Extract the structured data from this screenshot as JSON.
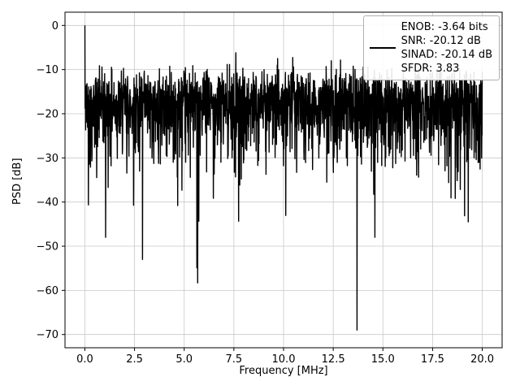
{
  "chart_data": {
    "type": "line",
    "title": "",
    "xlabel": "Frequency [MHz]",
    "ylabel": "PSD [dB]",
    "xlim": [
      -1.0,
      21.0
    ],
    "ylim": [
      -73,
      3
    ],
    "grid": true,
    "line_color": "#000000",
    "grid_color": "#c9c9c9",
    "spine_color": "#000000",
    "xticks": [
      0.0,
      2.5,
      5.0,
      7.5,
      10.0,
      12.5,
      15.0,
      17.5,
      20.0
    ],
    "xtick_labels": [
      "0.0",
      "2.5",
      "5.0",
      "7.5",
      "10.0",
      "12.5",
      "15.0",
      "17.5",
      "20.0"
    ],
    "yticks": [
      0,
      -10,
      -20,
      -30,
      -40,
      -50,
      -60,
      -70
    ],
    "ytick_labels": [
      "0",
      "−10",
      "−20",
      "−30",
      "−40",
      "−50",
      "−60",
      "−70"
    ],
    "series": [
      {
        "name": "PSD",
        "points_n": 2048,
        "x_range": [
          0,
          20
        ],
        "distribution": "exponential_db",
        "noise_floor_db": -16.5,
        "seed": 42,
        "peak": {
          "x": 0.0,
          "y": 0.0
        },
        "deep_null": {
          "x": 13.7,
          "y": -69.0
        },
        "extra_nulls": [
          {
            "x": 1.05,
            "y": -48.0
          },
          {
            "x": 2.9,
            "y": -53.0
          },
          {
            "x": 14.6,
            "y": -48.0
          },
          {
            "x": 19.3,
            "y": -44.5
          }
        ],
        "extra_peaks": [
          {
            "x": 7.6,
            "y": -6.2
          },
          {
            "x": 9.7,
            "y": -7.5
          },
          {
            "x": 12.4,
            "y": -8.0
          }
        ]
      }
    ],
    "legend": {
      "position": "upper right",
      "entries": [
        "ENOB: -3.64 bits",
        "SNR: -20.12 dB",
        "SINAD: -20.14 dB",
        "SFDR: 3.83"
      ]
    }
  }
}
